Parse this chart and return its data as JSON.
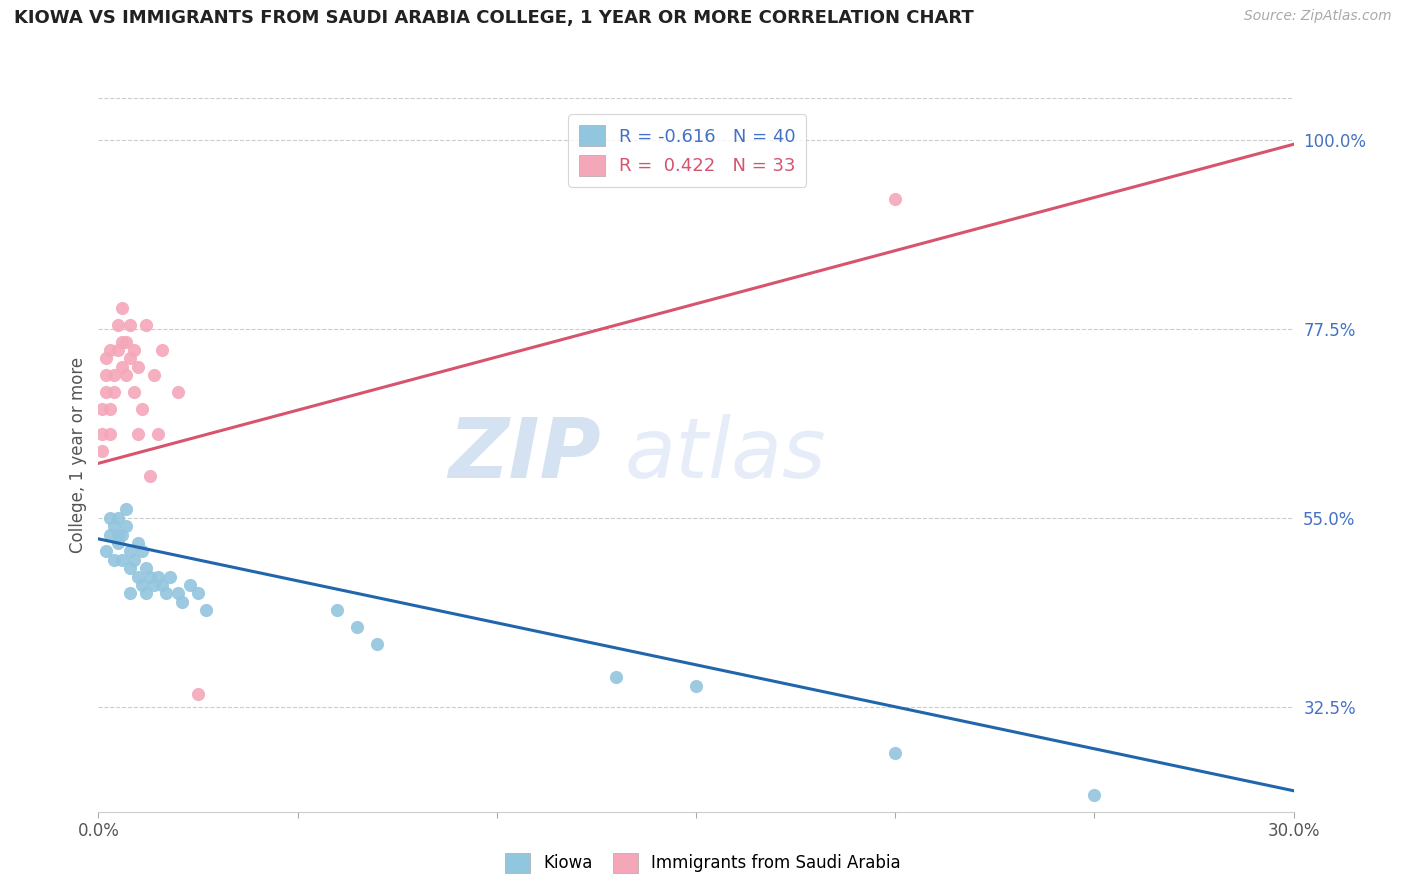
{
  "title": "KIOWA VS IMMIGRANTS FROM SAUDI ARABIA COLLEGE, 1 YEAR OR MORE CORRELATION CHART",
  "source": "Source: ZipAtlas.com",
  "ylabel": "College, 1 year or more",
  "right_yticks": [
    "100.0%",
    "77.5%",
    "55.0%",
    "32.5%"
  ],
  "right_ytick_vals": [
    1.0,
    0.775,
    0.55,
    0.325
  ],
  "xlim": [
    0.0,
    0.3
  ],
  "ylim": [
    0.2,
    1.05
  ],
  "watermark": "ZIPatlas",
  "blue_color": "#92c5de",
  "pink_color": "#f4a7b9",
  "blue_line_color": "#2166ac",
  "pink_line_color": "#d6546e",
  "legend_r1": "R = -0.616   N = 40",
  "legend_r2": "R =  0.422   N = 33",
  "blue_trendline_x": [
    0.0,
    0.3
  ],
  "blue_trendline_y": [
    0.525,
    0.225
  ],
  "pink_trendline_x": [
    0.0,
    0.3
  ],
  "pink_trendline_y": [
    0.615,
    0.995
  ],
  "kiowa_x": [
    0.002,
    0.003,
    0.003,
    0.004,
    0.004,
    0.005,
    0.005,
    0.005,
    0.006,
    0.006,
    0.007,
    0.007,
    0.008,
    0.008,
    0.008,
    0.009,
    0.01,
    0.01,
    0.011,
    0.011,
    0.012,
    0.012,
    0.013,
    0.014,
    0.015,
    0.016,
    0.017,
    0.018,
    0.02,
    0.021,
    0.023,
    0.025,
    0.027,
    0.06,
    0.065,
    0.07,
    0.13,
    0.15,
    0.2,
    0.25
  ],
  "kiowa_y": [
    0.51,
    0.53,
    0.55,
    0.5,
    0.54,
    0.52,
    0.55,
    0.53,
    0.5,
    0.53,
    0.54,
    0.56,
    0.49,
    0.51,
    0.46,
    0.5,
    0.48,
    0.52,
    0.47,
    0.51,
    0.46,
    0.49,
    0.48,
    0.47,
    0.48,
    0.47,
    0.46,
    0.48,
    0.46,
    0.45,
    0.47,
    0.46,
    0.44,
    0.44,
    0.42,
    0.4,
    0.36,
    0.35,
    0.27,
    0.22
  ],
  "saudi_x": [
    0.001,
    0.001,
    0.001,
    0.002,
    0.002,
    0.002,
    0.003,
    0.003,
    0.003,
    0.004,
    0.004,
    0.005,
    0.005,
    0.006,
    0.006,
    0.006,
    0.007,
    0.007,
    0.008,
    0.008,
    0.009,
    0.009,
    0.01,
    0.01,
    0.011,
    0.012,
    0.013,
    0.014,
    0.015,
    0.016,
    0.02,
    0.025,
    0.2
  ],
  "saudi_y": [
    0.63,
    0.65,
    0.68,
    0.7,
    0.72,
    0.74,
    0.65,
    0.68,
    0.75,
    0.7,
    0.72,
    0.75,
    0.78,
    0.73,
    0.76,
    0.8,
    0.72,
    0.76,
    0.74,
    0.78,
    0.7,
    0.75,
    0.73,
    0.65,
    0.68,
    0.78,
    0.6,
    0.72,
    0.65,
    0.75,
    0.7,
    0.34,
    0.93
  ]
}
